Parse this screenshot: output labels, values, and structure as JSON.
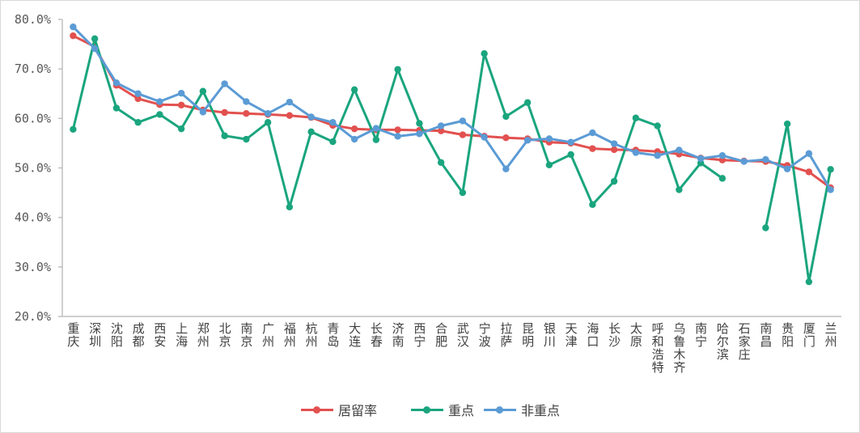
{
  "chart_data": {
    "type": "line",
    "title": "",
    "xlabel": "",
    "ylabel": "",
    "ylim": [
      20,
      80
    ],
    "yticks": [
      "20.0%",
      "30.0%",
      "40.0%",
      "50.0%",
      "60.0%",
      "70.0%",
      "80.0%"
    ],
    "grid": false,
    "legend_position": "bottom",
    "categories": [
      "重庆",
      "深圳",
      "沈阳",
      "成都",
      "西安",
      "上海",
      "郑州",
      "北京",
      "南京",
      "广州",
      "福州",
      "杭州",
      "青岛",
      "大连",
      "长春",
      "济南",
      "西宁",
      "合肥",
      "武汉",
      "宁波",
      "拉萨",
      "昆明",
      "银川",
      "天津",
      "海口",
      "长沙",
      "太原",
      "呼和浩特",
      "乌鲁木齐",
      "南宁",
      "哈尔滨",
      "石家庄",
      "南昌",
      "贵阳",
      "厦门",
      "兰州"
    ],
    "series": [
      {
        "name": "居留率",
        "color": "#e2514f",
        "values": [
          76.7,
          74.5,
          66.7,
          64.0,
          62.8,
          62.7,
          61.7,
          61.2,
          61.0,
          60.8,
          60.6,
          60.2,
          58.6,
          57.9,
          57.7,
          57.7,
          57.6,
          57.5,
          56.7,
          56.4,
          56.1,
          55.9,
          55.2,
          55.0,
          53.9,
          53.7,
          53.6,
          53.3,
          52.8,
          52.0,
          51.6,
          51.4,
          51.3,
          50.5,
          49.2,
          46.0
        ]
      },
      {
        "name": "重点",
        "color": "#1aa57e",
        "values": [
          57.8,
          76.1,
          62.1,
          59.2,
          60.8,
          57.9,
          65.5,
          56.5,
          55.8,
          59.2,
          42.1,
          57.3,
          55.3,
          65.8,
          55.7,
          69.9,
          59.0,
          51.1,
          45.0,
          73.1,
          60.4,
          63.2,
          50.6,
          52.7,
          42.6,
          47.3,
          60.1,
          58.5,
          45.6,
          51.0,
          47.9,
          null,
          37.9,
          58.9,
          27.0,
          49.7
        ]
      },
      {
        "name": "非重点",
        "color": "#5b9bd5",
        "values": [
          78.5,
          74.1,
          67.2,
          65.0,
          63.4,
          65.1,
          61.3,
          67.0,
          63.4,
          61.0,
          63.3,
          60.3,
          59.2,
          55.8,
          58.0,
          56.4,
          56.9,
          58.5,
          59.5,
          56.2,
          49.8,
          55.6,
          55.9,
          55.2,
          57.1,
          54.9,
          53.1,
          52.5,
          53.6,
          51.9,
          52.5,
          51.3,
          51.7,
          49.8,
          52.9,
          45.6
        ]
      }
    ]
  }
}
